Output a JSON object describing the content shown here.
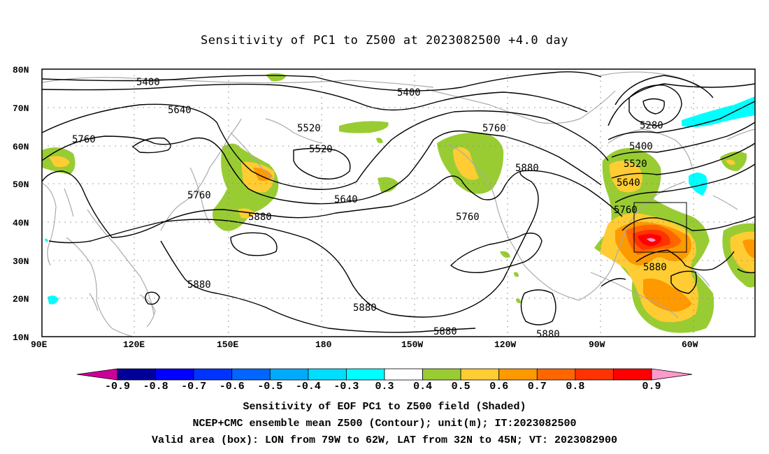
{
  "title": "Sensitivity of PC1 to Z500 at 2023082500 +4.0 day",
  "map": {
    "lon_ticks": [
      "90E",
      "120E",
      "150E",
      "180",
      "150W",
      "120W",
      "90W",
      "60W"
    ],
    "lat_ticks": [
      "80N",
      "70N",
      "60N",
      "50N",
      "40N",
      "30N",
      "20N",
      "10N"
    ],
    "contour_labels": [
      "5400",
      "5400",
      "5640",
      "5520",
      "5520",
      "5760",
      "5760",
      "5280",
      "5400",
      "5520",
      "5640",
      "5760",
      "5880",
      "5760",
      "5640",
      "5880",
      "5760",
      "5880",
      "5880",
      "5880",
      "5880",
      "5880"
    ],
    "valid_box": {
      "lon_from": "79W",
      "lon_to": "62W",
      "lat_from": "32N",
      "lat_to": "45N"
    },
    "colors": {
      "coast": "#aaaaaa",
      "contour": "#000000",
      "green": "#99cc33",
      "yellow": "#ffcc33",
      "orange": "#ff9900",
      "dark_orange": "#ff6600",
      "red_orange": "#ff3300",
      "red": "#ff0000",
      "pink": "#ff99cc",
      "cyan": "#00ffff"
    }
  },
  "colorbar": {
    "labels": [
      "-0.9",
      "-0.8",
      "-0.7",
      "-0.6",
      "-0.5",
      "-0.4",
      "-0.3",
      "0.3",
      "0.4",
      "0.5",
      "0.6",
      "0.7",
      "0.8",
      "0.9"
    ],
    "colors": [
      "#000099",
      "#0000ff",
      "#0033ff",
      "#0066ff",
      "#00aaff",
      "#00ddff",
      "#00ffff",
      "#ffffff",
      "#99cc33",
      "#ffcc33",
      "#ff9900",
      "#ff6600",
      "#ff3300",
      "#ff0000"
    ],
    "low_extend_color": "#cc0099",
    "high_extend_color": "#ff99cc"
  },
  "footer": {
    "line1": "Sensitivity of EOF PC1 to Z500 field (Shaded)",
    "line2": "NCEP+CMC ensemble mean Z500 (Contour); unit(m); IT:2023082500",
    "line3": "Valid area (box): LON from 79W to 62W, LAT from 32N to 45N; VT: 2023082900"
  }
}
